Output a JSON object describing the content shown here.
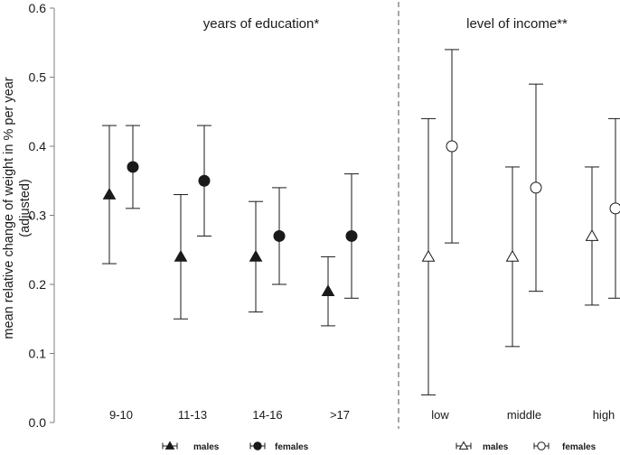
{
  "chart_data": {
    "type": "scatter",
    "subtype": "errorbar",
    "ylabel_lines": [
      "mean relative change of weight in % per year",
      "(adjusted)"
    ],
    "ylim": [
      0,
      0.6
    ],
    "yticks": [
      "0.0",
      "0.1",
      "0.2",
      "0.3",
      "0.4",
      "0.5",
      "0.6"
    ],
    "grid": false,
    "panels": [
      {
        "title": "years of education*",
        "categories": [
          "9-10",
          "11-13",
          "14-16",
          ">17"
        ],
        "series": [
          {
            "name": "males",
            "marker": "triangle-filled",
            "values": [
              0.33,
              0.24,
              0.24,
              0.19
            ],
            "lower": [
              0.23,
              0.15,
              0.16,
              0.14
            ],
            "upper": [
              0.43,
              0.33,
              0.32,
              0.24
            ]
          },
          {
            "name": "females",
            "marker": "circle-filled",
            "values": [
              0.37,
              0.35,
              0.27,
              0.27
            ],
            "lower": [
              0.31,
              0.27,
              0.2,
              0.18
            ],
            "upper": [
              0.43,
              0.43,
              0.34,
              0.36
            ]
          }
        ]
      },
      {
        "title": "level of income**",
        "categories": [
          "low",
          "middle",
          "high"
        ],
        "series": [
          {
            "name": "males",
            "marker": "triangle-open",
            "values": [
              0.24,
              0.24,
              0.27
            ],
            "lower": [
              0.04,
              0.11,
              0.17
            ],
            "upper": [
              0.44,
              0.37,
              0.37
            ]
          },
          {
            "name": "females",
            "marker": "circle-open",
            "values": [
              0.4,
              0.34,
              0.31
            ],
            "lower": [
              0.26,
              0.19,
              0.18
            ],
            "upper": [
              0.54,
              0.49,
              0.44
            ]
          }
        ]
      }
    ],
    "legend_placement": "bottom",
    "colors": {
      "ink": "#1a1a1a",
      "axis": "#7f7f7f",
      "divider": "#6e6e6e"
    }
  }
}
